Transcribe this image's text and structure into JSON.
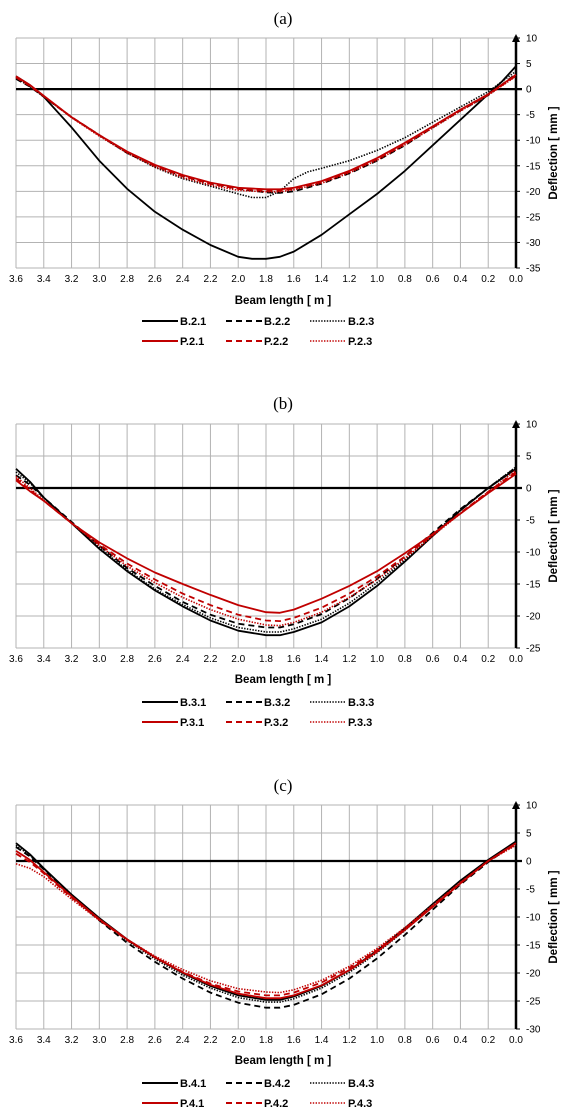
{
  "chart_data": [
    {
      "type": "line",
      "panel_label": "(a)",
      "xlabel": "Beam length [ m ]",
      "ylabel": "Deflection [ mm ]",
      "xlim": [
        3.6,
        0.0
      ],
      "x_reversed": true,
      "ylim": [
        -35,
        10
      ],
      "xticks": [
        "3.6",
        "3.4",
        "3.2",
        "3.0",
        "2.8",
        "2.6",
        "2.4",
        "2.2",
        "2.0",
        "1.8",
        "1.6",
        "1.4",
        "1.2",
        "1.0",
        "0.8",
        "0.6",
        "0.4",
        "0.2",
        "0.0"
      ],
      "yticks": [
        "10",
        "5",
        "0",
        "-5",
        "-10",
        "-15",
        "-20",
        "-25",
        "-30",
        "-35"
      ],
      "grid": true,
      "legend_position": "bottom",
      "series": [
        {
          "name": "B.2.1",
          "color": "#000000",
          "dash": "solid",
          "x": [
            3.6,
            3.5,
            3.4,
            3.2,
            3.0,
            2.8,
            2.6,
            2.4,
            2.2,
            2.0,
            1.9,
            1.8,
            1.7,
            1.6,
            1.4,
            1.2,
            1.0,
            0.8,
            0.6,
            0.4,
            0.2,
            0.1,
            0.0
          ],
          "y": [
            2.5,
            0.8,
            -1.5,
            -7.5,
            -14,
            -19.5,
            -24,
            -27.5,
            -30.5,
            -32.8,
            -33.2,
            -33.2,
            -32.8,
            -31.8,
            -28.5,
            -24.5,
            -20.5,
            -16,
            -11,
            -6,
            -1,
            1.5,
            4.5
          ]
        },
        {
          "name": "B.2.2",
          "color": "#000000",
          "dash": "dashed",
          "x": [
            3.6,
            3.5,
            3.4,
            3.2,
            3.0,
            2.8,
            2.6,
            2.4,
            2.2,
            2.0,
            1.8,
            1.7,
            1.6,
            1.4,
            1.2,
            1.0,
            0.8,
            0.6,
            0.4,
            0.2,
            0.0
          ],
          "y": [
            2.0,
            0.5,
            -1.5,
            -5.5,
            -9,
            -12.5,
            -15,
            -17,
            -18.5,
            -19.5,
            -20.2,
            -20.3,
            -20,
            -18.5,
            -16.5,
            -14,
            -11,
            -7.5,
            -4.2,
            -1.2,
            3.0
          ]
        },
        {
          "name": "B.2.3",
          "color": "#000000",
          "dash": "dotted",
          "x": [
            3.6,
            3.5,
            3.4,
            3.2,
            3.0,
            2.8,
            2.6,
            2.4,
            2.2,
            2.0,
            1.9,
            1.8,
            1.7,
            1.6,
            1.5,
            1.4,
            1.2,
            1.0,
            0.8,
            0.6,
            0.4,
            0.2,
            0.0
          ],
          "y": [
            2.2,
            0.5,
            -1.5,
            -5.5,
            -9,
            -12.5,
            -15.3,
            -17.5,
            -19,
            -20.5,
            -21.2,
            -21.2,
            -20,
            -17.5,
            -16.2,
            -15.5,
            -14,
            -12,
            -9.5,
            -6.5,
            -3.5,
            -0.5,
            3.5
          ]
        },
        {
          "name": "P.2.1",
          "color": "#c00000",
          "dash": "solid",
          "x": [
            3.6,
            3.5,
            3.4,
            3.2,
            3.0,
            2.8,
            2.6,
            2.4,
            2.2,
            2.0,
            1.8,
            1.7,
            1.6,
            1.4,
            1.2,
            1.0,
            0.8,
            0.6,
            0.4,
            0.2,
            0.0
          ],
          "y": [
            2.5,
            0.8,
            -1.3,
            -5.5,
            -9,
            -12.2,
            -14.8,
            -16.8,
            -18.3,
            -19.3,
            -19.6,
            -19.6,
            -19.3,
            -18,
            -16,
            -13.5,
            -10.5,
            -7.3,
            -4,
            -1,
            2.8
          ]
        },
        {
          "name": "P.2.2",
          "color": "#c00000",
          "dash": "dashed",
          "x": [
            3.6,
            3.5,
            3.4,
            3.2,
            3.0,
            2.8,
            2.6,
            2.4,
            2.2,
            2.0,
            1.8,
            1.7,
            1.6,
            1.4,
            1.2,
            1.0,
            0.8,
            0.6,
            0.4,
            0.2,
            0.0
          ],
          "y": [
            2.3,
            0.6,
            -1.4,
            -5.5,
            -9,
            -12.3,
            -15,
            -17,
            -18.5,
            -19.5,
            -19.9,
            -19.9,
            -19.5,
            -18.2,
            -16.2,
            -13.7,
            -10.7,
            -7.4,
            -4.1,
            -1.1,
            2.6
          ]
        },
        {
          "name": "P.2.3",
          "color": "#c00000",
          "dash": "dotted",
          "x": [
            3.6,
            3.5,
            3.4,
            3.2,
            3.0,
            2.8,
            2.6,
            2.4,
            2.2,
            2.0,
            1.8,
            1.7,
            1.6,
            1.4,
            1.2,
            1.0,
            0.8,
            0.6,
            0.4,
            0.2,
            0.0
          ],
          "y": [
            2.4,
            0.7,
            -1.4,
            -5.6,
            -9.2,
            -12.5,
            -15.2,
            -17.3,
            -18.8,
            -19.8,
            -20.1,
            -20.1,
            -19.7,
            -18.4,
            -16.4,
            -13.9,
            -10.9,
            -7.6,
            -4.3,
            -1.2,
            2.5
          ]
        }
      ]
    },
    {
      "type": "line",
      "panel_label": "(b)",
      "xlabel": "Beam length [ m ]",
      "ylabel": "Deflection [ mm ]",
      "xlim": [
        3.6,
        0.0
      ],
      "x_reversed": true,
      "ylim": [
        -25,
        10
      ],
      "xticks": [
        "3.6",
        "3.4",
        "3.2",
        "3.0",
        "2.8",
        "2.6",
        "2.4",
        "2.2",
        "2.0",
        "1.8",
        "1.6",
        "1.4",
        "1.2",
        "1.0",
        "0.8",
        "0.6",
        "0.4",
        "0.2",
        "0.0"
      ],
      "yticks": [
        "10",
        "5",
        "0",
        "-5",
        "-10",
        "-15",
        "-20",
        "-25"
      ],
      "grid": true,
      "legend_position": "bottom",
      "series": [
        {
          "name": "B.3.1",
          "color": "#000000",
          "dash": "solid",
          "x": [
            3.6,
            3.5,
            3.4,
            3.2,
            3.0,
            2.8,
            2.6,
            2.4,
            2.2,
            2.0,
            1.8,
            1.7,
            1.6,
            1.4,
            1.2,
            1.0,
            0.8,
            0.6,
            0.4,
            0.2,
            0.0
          ],
          "y": [
            3.0,
            1.0,
            -1.5,
            -5.5,
            -9.5,
            -13,
            -16,
            -18.5,
            -20.7,
            -22.3,
            -23.0,
            -23.0,
            -22.5,
            -21,
            -18.5,
            -15.3,
            -11.5,
            -7.5,
            -3.5,
            0,
            3.0
          ]
        },
        {
          "name": "B.3.2",
          "color": "#000000",
          "dash": "dashed",
          "x": [
            3.6,
            3.5,
            3.4,
            3.2,
            3.0,
            2.8,
            2.6,
            2.4,
            2.2,
            2.0,
            1.8,
            1.7,
            1.6,
            1.4,
            1.2,
            1.0,
            0.8,
            0.6,
            0.4,
            0.2,
            0.0
          ],
          "y": [
            2.0,
            0.5,
            -1.5,
            -5.3,
            -9,
            -12.5,
            -15.3,
            -17.8,
            -19.8,
            -21.2,
            -21.8,
            -21.8,
            -21.3,
            -19.7,
            -17.2,
            -14.2,
            -10.7,
            -7,
            -3.3,
            0,
            3.2
          ]
        },
        {
          "name": "B.3.3",
          "color": "#000000",
          "dash": "dotted",
          "x": [
            3.6,
            3.5,
            3.4,
            3.2,
            3.0,
            2.8,
            2.6,
            2.4,
            2.2,
            2.0,
            1.8,
            1.7,
            1.6,
            1.4,
            1.2,
            1.0,
            0.8,
            0.6,
            0.4,
            0.2,
            0.0
          ],
          "y": [
            2.5,
            0.8,
            -1.5,
            -5.5,
            -9.3,
            -12.8,
            -15.8,
            -18.2,
            -20.3,
            -21.8,
            -22.5,
            -22.5,
            -22,
            -20.5,
            -18,
            -14.8,
            -11.2,
            -7.3,
            -3.4,
            0,
            3.3
          ]
        },
        {
          "name": "P.3.1",
          "color": "#c00000",
          "dash": "solid",
          "x": [
            3.6,
            3.5,
            3.4,
            3.2,
            3.0,
            2.8,
            2.6,
            2.4,
            2.2,
            2.0,
            1.8,
            1.7,
            1.6,
            1.4,
            1.2,
            1.0,
            0.8,
            0.6,
            0.4,
            0.2,
            0.0
          ],
          "y": [
            1.2,
            -0.5,
            -2,
            -5.5,
            -8.5,
            -11,
            -13.2,
            -15,
            -16.7,
            -18.3,
            -19.4,
            -19.5,
            -19,
            -17.3,
            -15.3,
            -13,
            -10.2,
            -7.2,
            -4,
            -0.8,
            2.2
          ]
        },
        {
          "name": "P.3.2",
          "color": "#c00000",
          "dash": "dashed",
          "x": [
            3.6,
            3.5,
            3.4,
            3.2,
            3.0,
            2.8,
            2.6,
            2.4,
            2.2,
            2.0,
            1.8,
            1.7,
            1.6,
            1.4,
            1.2,
            1.0,
            0.8,
            0.6,
            0.4,
            0.2,
            0.0
          ],
          "y": [
            1.5,
            -0.3,
            -2,
            -5.5,
            -8.8,
            -11.8,
            -14.3,
            -16.5,
            -18.3,
            -19.8,
            -20.7,
            -20.8,
            -20.3,
            -18.7,
            -16.5,
            -13.8,
            -10.7,
            -7.3,
            -3.9,
            -0.6,
            2.5
          ]
        },
        {
          "name": "P.3.3",
          "color": "#c00000",
          "dash": "dotted",
          "x": [
            3.6,
            3.5,
            3.4,
            3.2,
            3.0,
            2.8,
            2.6,
            2.4,
            2.2,
            2.0,
            1.8,
            1.7,
            1.6,
            1.4,
            1.2,
            1.0,
            0.8,
            0.6,
            0.4,
            0.2,
            0.0
          ],
          "y": [
            1.8,
            0,
            -1.9,
            -5.5,
            -9,
            -12.2,
            -14.8,
            -17.1,
            -19,
            -20.5,
            -21.4,
            -21.5,
            -21,
            -19.4,
            -17.1,
            -14.3,
            -11,
            -7.5,
            -4,
            -0.6,
            2.8
          ]
        }
      ]
    },
    {
      "type": "line",
      "panel_label": "(c)",
      "xlabel": "Beam length [ m ]",
      "ylabel": "Deflection [ mm ]",
      "xlim": [
        3.6,
        0.0
      ],
      "x_reversed": true,
      "ylim": [
        -30,
        10
      ],
      "xticks": [
        "3.6",
        "3.4",
        "3.2",
        "3.0",
        "2.8",
        "2.6",
        "2.4",
        "2.2",
        "2.0",
        "1.8",
        "1.6",
        "1.4",
        "1.2",
        "1.0",
        "0.8",
        "0.6",
        "0.4",
        "0.2",
        "0.0"
      ],
      "yticks": [
        "10",
        "5",
        "0",
        "-5",
        "-10",
        "-15",
        "-20",
        "-25",
        "-30"
      ],
      "grid": true,
      "legend_position": "bottom",
      "series": [
        {
          "name": "B.4.1",
          "color": "#000000",
          "dash": "solid",
          "x": [
            3.6,
            3.5,
            3.4,
            3.2,
            3.0,
            2.8,
            2.6,
            2.4,
            2.2,
            2.0,
            1.8,
            1.7,
            1.6,
            1.4,
            1.2,
            1.0,
            0.8,
            0.6,
            0.4,
            0.2,
            0.0
          ],
          "y": [
            3.2,
            1.2,
            -1.3,
            -6,
            -10.2,
            -14,
            -17.2,
            -20,
            -22.3,
            -24,
            -24.8,
            -24.8,
            -24.2,
            -22.3,
            -19.5,
            -16,
            -12,
            -7.7,
            -3.5,
            0.2,
            3.5
          ]
        },
        {
          "name": "B.4.2",
          "color": "#000000",
          "dash": "dashed",
          "x": [
            3.6,
            3.5,
            3.4,
            3.2,
            3.0,
            2.8,
            2.6,
            2.4,
            2.2,
            2.0,
            1.8,
            1.7,
            1.6,
            1.4,
            1.2,
            1.0,
            0.8,
            0.6,
            0.4,
            0.2,
            0.0
          ],
          "y": [
            2.5,
            0.8,
            -1.5,
            -6.2,
            -10.6,
            -14.6,
            -18,
            -21,
            -23.5,
            -25.3,
            -26.2,
            -26.2,
            -25.7,
            -23.8,
            -21,
            -17.4,
            -13.2,
            -8.7,
            -4.2,
            -0.2,
            3.3
          ]
        },
        {
          "name": "B.4.3",
          "color": "#000000",
          "dash": "dotted",
          "x": [
            3.6,
            3.5,
            3.4,
            3.2,
            3.0,
            2.8,
            2.6,
            2.4,
            2.2,
            2.0,
            1.8,
            1.7,
            1.6,
            1.4,
            1.2,
            1.0,
            0.8,
            0.6,
            0.4,
            0.2,
            0.0
          ],
          "y": [
            2.8,
            1.0,
            -1.4,
            -6,
            -10.3,
            -14.2,
            -17.5,
            -20.4,
            -22.7,
            -24.4,
            -25.2,
            -25.2,
            -24.6,
            -22.7,
            -19.9,
            -16.4,
            -12.4,
            -8.1,
            -3.8,
            0,
            3.4
          ]
        },
        {
          "name": "P.4.1",
          "color": "#c00000",
          "dash": "solid",
          "x": [
            3.6,
            3.5,
            3.4,
            3.2,
            3.0,
            2.8,
            2.6,
            2.4,
            2.2,
            2.0,
            1.8,
            1.7,
            1.6,
            1.4,
            1.2,
            1.0,
            0.8,
            0.6,
            0.4,
            0.2,
            0.0
          ],
          "y": [
            1.8,
            0.2,
            -2,
            -6.3,
            -10.4,
            -14,
            -17.2,
            -19.9,
            -22.1,
            -23.7,
            -24.5,
            -24.5,
            -24,
            -22.2,
            -19.5,
            -16.2,
            -12.3,
            -8.2,
            -4,
            0,
            3.2
          ]
        },
        {
          "name": "P.4.2",
          "color": "#c00000",
          "dash": "dashed",
          "x": [
            3.6,
            3.5,
            3.4,
            3.2,
            3.0,
            2.8,
            2.6,
            2.4,
            2.2,
            2.0,
            1.8,
            1.7,
            1.6,
            1.4,
            1.2,
            1.0,
            0.8,
            0.6,
            0.4,
            0.2,
            0.0
          ],
          "y": [
            1.3,
            -0.2,
            -2.2,
            -6.5,
            -10.5,
            -14.1,
            -17.2,
            -19.8,
            -21.9,
            -23.3,
            -24,
            -24,
            -23.5,
            -21.7,
            -19.1,
            -15.9,
            -12.1,
            -8,
            -3.9,
            0,
            3.0
          ]
        },
        {
          "name": "P.4.3",
          "color": "#c00000",
          "dash": "dotted",
          "x": [
            3.6,
            3.5,
            3.4,
            3.2,
            3.0,
            2.8,
            2.6,
            2.4,
            2.2,
            2.0,
            1.8,
            1.7,
            1.6,
            1.4,
            1.2,
            1.0,
            0.8,
            0.6,
            0.4,
            0.2,
            0.0
          ],
          "y": [
            -0.5,
            -1.3,
            -2.8,
            -6.8,
            -10.6,
            -14,
            -17,
            -19.4,
            -21.4,
            -22.8,
            -23.4,
            -23.5,
            -23,
            -21.3,
            -18.8,
            -15.6,
            -11.9,
            -7.9,
            -3.8,
            0,
            2.8
          ]
        }
      ]
    }
  ]
}
